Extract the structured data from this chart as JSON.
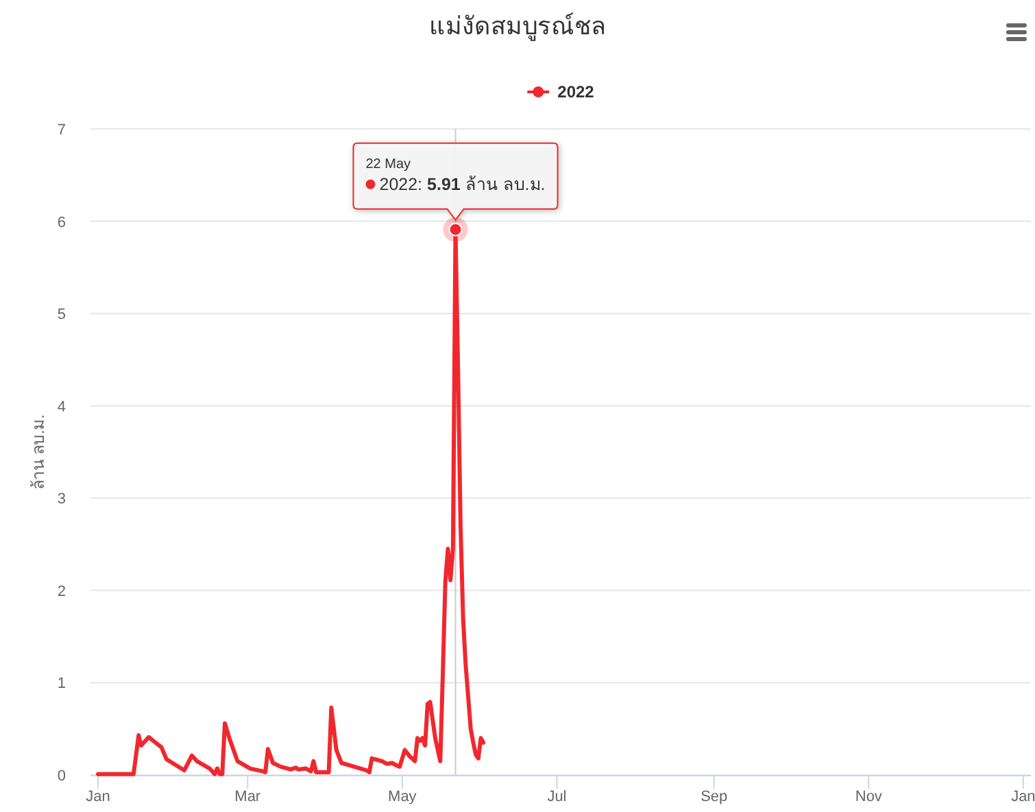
{
  "chart_data": {
    "type": "line",
    "title": "แม่งัดสมบูรณ์ชล",
    "ylabel": "ล้าน ลบ.ม.",
    "x": [
      "2022-01-01",
      "2022-01-15",
      "2022-01-17",
      "2022-01-18",
      "2022-01-21",
      "2022-01-26",
      "2022-01-28",
      "2022-02-04",
      "2022-02-07",
      "2022-02-09",
      "2022-02-14",
      "2022-02-16",
      "2022-02-17",
      "2022-02-18",
      "2022-02-19",
      "2022-02-20",
      "2022-02-22",
      "2022-02-25",
      "2022-03-02",
      "2022-03-07",
      "2022-03-08",
      "2022-03-09",
      "2022-03-11",
      "2022-03-14",
      "2022-03-18",
      "2022-03-20",
      "2022-03-21",
      "2022-03-24",
      "2022-03-26",
      "2022-03-27",
      "2022-03-28",
      "2022-04-02",
      "2022-04-03",
      "2022-04-05",
      "2022-04-07",
      "2022-04-12",
      "2022-04-17",
      "2022-04-18",
      "2022-04-19",
      "2022-04-23",
      "2022-04-25",
      "2022-04-27",
      "2022-04-29",
      "2022-04-30",
      "2022-05-02",
      "2022-05-04",
      "2022-05-06",
      "2022-05-07",
      "2022-05-08",
      "2022-05-09",
      "2022-05-10",
      "2022-05-11",
      "2022-05-12",
      "2022-05-14",
      "2022-05-16",
      "2022-05-17",
      "2022-05-18",
      "2022-05-19",
      "2022-05-20",
      "2022-05-21",
      "2022-05-22",
      "2022-05-23",
      "2022-05-24",
      "2022-05-25",
      "2022-05-26",
      "2022-05-27",
      "2022-05-28",
      "2022-05-29",
      "2022-05-30",
      "2022-05-31",
      "2022-06-01",
      "2022-06-02"
    ],
    "series": [
      {
        "name": "2022",
        "color": "#f0282d",
        "values": [
          0.01,
          0.01,
          0.43,
          0.32,
          0.41,
          0.3,
          0.17,
          0.05,
          0.21,
          0.15,
          0.07,
          0.01,
          0.07,
          0.01,
          0.01,
          0.56,
          0.38,
          0.15,
          0.07,
          0.04,
          0.03,
          0.28,
          0.13,
          0.09,
          0.06,
          0.08,
          0.06,
          0.07,
          0.04,
          0.15,
          0.03,
          0.03,
          0.73,
          0.27,
          0.13,
          0.09,
          0.05,
          0.03,
          0.18,
          0.15,
          0.12,
          0.13,
          0.1,
          0.09,
          0.27,
          0.2,
          0.15,
          0.4,
          0.37,
          0.4,
          0.32,
          0.77,
          0.79,
          0.4,
          0.15,
          1.1,
          2.1,
          2.45,
          2.11,
          2.45,
          5.91,
          4.4,
          2.7,
          1.7,
          1.2,
          0.85,
          0.5,
          0.35,
          0.22,
          0.18,
          0.4,
          0.35
        ]
      }
    ],
    "xlim": [
      "2021-12-29",
      "2023-01-04"
    ],
    "xticks": [
      {
        "value": "2022-01-01",
        "label": "Jan"
      },
      {
        "value": "2022-03-01",
        "label": "Mar"
      },
      {
        "value": "2022-05-01",
        "label": "May"
      },
      {
        "value": "2022-07-01",
        "label": "Jul"
      },
      {
        "value": "2022-09-01",
        "label": "Sep"
      },
      {
        "value": "2022-11-01",
        "label": "Nov"
      },
      {
        "value": "2023-01-01",
        "label": "Jan"
      }
    ],
    "ylim": [
      0,
      7
    ],
    "yticks": [
      0,
      1,
      2,
      3,
      4,
      5,
      6,
      7
    ],
    "grid": "y",
    "legend": "top",
    "ref_lines": [
      {
        "axis": "x",
        "value": "2022-05-22",
        "color": "#cccccc"
      }
    ],
    "annotations": [
      {
        "text": "22 May\n2022: 5.91 ล้าน ลบ.ม.",
        "x": "2022-05-22",
        "y": 5.91
      }
    ]
  }
}
